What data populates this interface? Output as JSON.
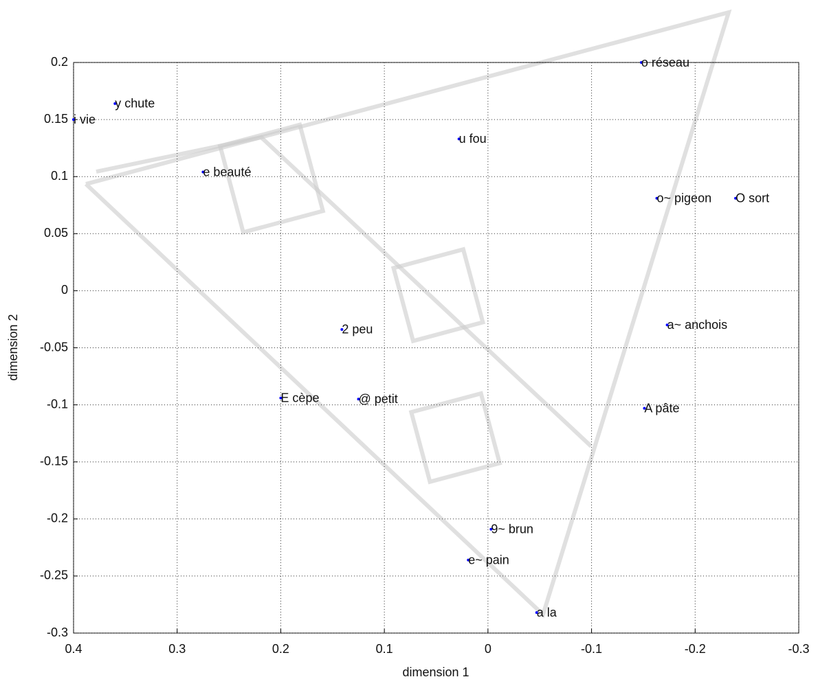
{
  "chart_data": {
    "type": "scatter",
    "xlabel": "dimension 1",
    "ylabel": "dimension 2",
    "xlim": [
      0.4,
      -0.3
    ],
    "ylim": [
      -0.3,
      0.2
    ],
    "xticks": [
      0.4,
      0.3,
      0.2,
      0.1,
      0,
      -0.1,
      -0.2,
      -0.3
    ],
    "yticks": [
      0.2,
      0.15,
      0.1,
      0.05,
      0,
      -0.05,
      -0.1,
      -0.15,
      -0.2,
      -0.25,
      -0.3
    ],
    "grid": true,
    "color": "#0000ff",
    "labels": [
      "i vie",
      "y chute",
      "e beauté",
      "u fou",
      "o réseau",
      "o~ pigeon",
      "O sort",
      "a~ anchois",
      "2 peu",
      "E cèpe",
      "@ petit",
      "A pâte",
      "9~ brun",
      "e~ pain",
      "a la"
    ],
    "x": [
      0.4,
      0.36,
      0.275,
      0.028,
      -0.148,
      -0.163,
      -0.239,
      -0.173,
      0.141,
      0.2,
      0.125,
      -0.151,
      -0.003,
      0.019,
      -0.047
    ],
    "values": [
      0.15,
      0.164,
      0.104,
      0.133,
      0.2,
      0.081,
      0.081,
      -0.03,
      -0.034,
      -0.094,
      -0.095,
      -0.103,
      -0.209,
      -0.236,
      -0.282
    ]
  }
}
